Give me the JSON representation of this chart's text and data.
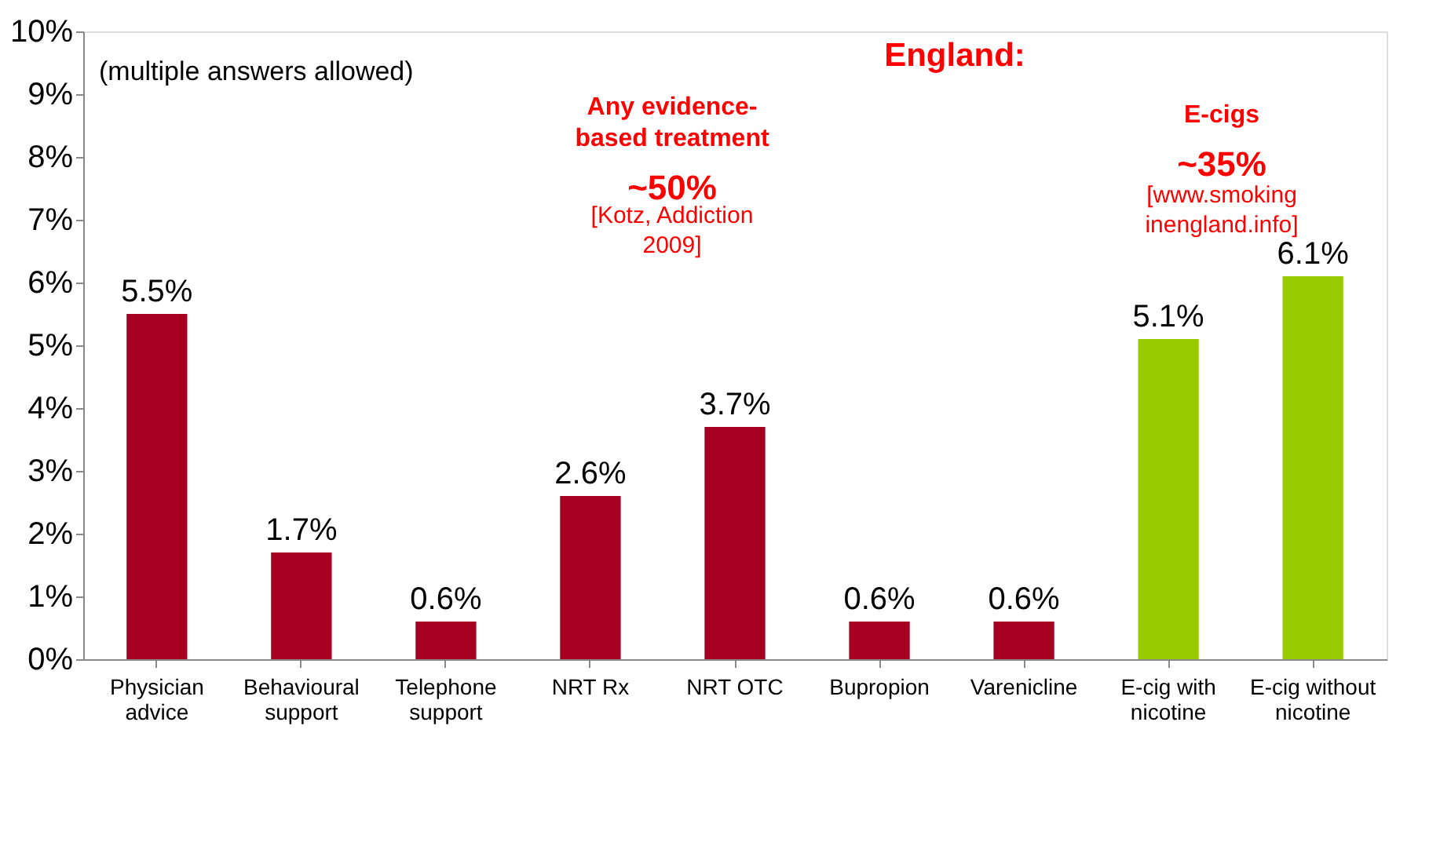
{
  "chart_data": {
    "type": "bar",
    "categories": [
      "Physician advice",
      "Behavioural support",
      "Telephone support",
      "NRT Rx",
      "NRT OTC",
      "Bupropion",
      "Varenicline",
      "E-cig with nicotine",
      "E-cig without nicotine"
    ],
    "values": [
      5.5,
      1.7,
      0.6,
      2.6,
      3.7,
      0.6,
      0.6,
      5.1,
      6.1
    ],
    "colors": [
      "#a50021",
      "#a50021",
      "#a50021",
      "#a50021",
      "#a50021",
      "#a50021",
      "#a50021",
      "#99cc00",
      "#99cc00"
    ],
    "value_labels": [
      "5.5%",
      "1.7%",
      "0.6%",
      "2.6%",
      "3.7%",
      "0.6%",
      "0.6%",
      "5.1%",
      "6.1%"
    ],
    "ylim": [
      0,
      10
    ],
    "yticks": [
      {
        "value": 0,
        "label": "0%"
      },
      {
        "value": 1,
        "label": "1%"
      },
      {
        "value": 2,
        "label": "2%"
      },
      {
        "value": 3,
        "label": "3%"
      },
      {
        "value": 4,
        "label": "4%"
      },
      {
        "value": 5,
        "label": "5%"
      },
      {
        "value": 6,
        "label": "6%"
      },
      {
        "value": 7,
        "label": "7%"
      },
      {
        "value": 8,
        "label": "8%"
      },
      {
        "value": 9,
        "label": "9%"
      },
      {
        "value": 10,
        "label": "10%"
      }
    ],
    "grid": false,
    "annotations": [
      "(multiple answers allowed)",
      "England:",
      "Any evidence-\nbased treatment",
      "~50%",
      "[Kotz, Addiction\n2009]",
      "E-cigs",
      "~35%",
      "[www.smoking\ninengland.info]"
    ]
  }
}
